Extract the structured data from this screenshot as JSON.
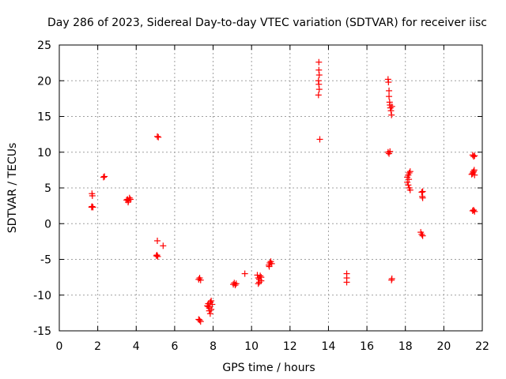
{
  "chart_data": {
    "type": "scatter",
    "title": "Day 286 of 2023, Sidereal Day-to-day VTEC variation (SDTVAR) for receiver iisc",
    "xlabel": "GPS time / hours",
    "ylabel": "SDTVAR / TECUs",
    "xlim": [
      0,
      22
    ],
    "ylim": [
      -15,
      25
    ],
    "xticks": [
      0,
      2,
      4,
      6,
      8,
      10,
      12,
      14,
      16,
      18,
      20,
      22
    ],
    "yticks": [
      -15,
      -10,
      -5,
      0,
      5,
      10,
      15,
      20,
      25
    ],
    "grid": true,
    "marker": "+",
    "color": "#ff0000",
    "series": [
      {
        "name": "SDTVAR",
        "points": [
          [
            1.7,
            4.2
          ],
          [
            1.72,
            3.9
          ],
          [
            1.7,
            2.4
          ],
          [
            1.75,
            2.3
          ],
          [
            1.68,
            2.3
          ],
          [
            2.35,
            6.6
          ],
          [
            2.3,
            6.5
          ],
          [
            3.55,
            3.4
          ],
          [
            3.6,
            3.2
          ],
          [
            3.65,
            3.6
          ],
          [
            3.5,
            3.3
          ],
          [
            3.7,
            3.4
          ],
          [
            3.58,
            3.0
          ],
          [
            5.1,
            12.2
          ],
          [
            5.15,
            12.1
          ],
          [
            5.1,
            -2.4
          ],
          [
            5.4,
            -3.1
          ],
          [
            5.08,
            -4.4
          ],
          [
            5.12,
            -4.6
          ],
          [
            5.05,
            -4.5
          ],
          [
            7.3,
            -7.6
          ],
          [
            7.35,
            -7.9
          ],
          [
            7.25,
            -7.8
          ],
          [
            7.3,
            -13.5
          ],
          [
            7.35,
            -13.7
          ],
          [
            7.25,
            -13.4
          ],
          [
            7.7,
            -11.5
          ],
          [
            7.75,
            -11.2
          ],
          [
            7.8,
            -11.8
          ],
          [
            7.85,
            -11.0
          ],
          [
            7.9,
            -10.8
          ],
          [
            7.8,
            -12.2
          ],
          [
            7.85,
            -12.6
          ],
          [
            7.9,
            -12.0
          ],
          [
            7.75,
            -11.6
          ],
          [
            7.95,
            -11.3
          ],
          [
            9.05,
            -8.5
          ],
          [
            9.1,
            -8.3
          ],
          [
            9.15,
            -8.6
          ],
          [
            9.2,
            -8.4
          ],
          [
            9.65,
            -7.0
          ],
          [
            10.3,
            -7.2
          ],
          [
            10.35,
            -7.6
          ],
          [
            10.4,
            -7.8
          ],
          [
            10.45,
            -7.3
          ],
          [
            10.5,
            -8.0
          ],
          [
            10.35,
            -8.4
          ],
          [
            10.4,
            -8.2
          ],
          [
            10.5,
            -7.5
          ],
          [
            10.9,
            -5.8
          ],
          [
            10.95,
            -5.5
          ],
          [
            11.0,
            -5.3
          ],
          [
            11.05,
            -5.6
          ],
          [
            10.92,
            -6.0
          ],
          [
            13.5,
            22.6
          ],
          [
            13.5,
            21.5
          ],
          [
            13.52,
            20.8
          ],
          [
            13.48,
            20.0
          ],
          [
            13.5,
            19.5
          ],
          [
            13.52,
            18.8
          ],
          [
            13.48,
            18.0
          ],
          [
            13.55,
            11.8
          ],
          [
            14.95,
            -7.0
          ],
          [
            14.95,
            -7.6
          ],
          [
            14.95,
            -8.2
          ],
          [
            17.1,
            20.2
          ],
          [
            17.12,
            19.8
          ],
          [
            17.15,
            18.6
          ],
          [
            17.15,
            17.8
          ],
          [
            17.18,
            17.0
          ],
          [
            17.2,
            16.6
          ],
          [
            17.22,
            16.2
          ],
          [
            17.25,
            15.8
          ],
          [
            17.28,
            15.2
          ],
          [
            17.3,
            16.4
          ],
          [
            17.1,
            10.0
          ],
          [
            17.15,
            9.8
          ],
          [
            17.2,
            10.1
          ],
          [
            17.3,
            -7.7
          ],
          [
            17.28,
            -7.9
          ],
          [
            18.1,
            6.5
          ],
          [
            18.15,
            6.8
          ],
          [
            18.2,
            7.1
          ],
          [
            18.25,
            7.3
          ],
          [
            18.1,
            5.8
          ],
          [
            18.15,
            5.4
          ],
          [
            18.2,
            5.0
          ],
          [
            18.25,
            4.7
          ],
          [
            18.18,
            6.2
          ],
          [
            18.85,
            4.4
          ],
          [
            18.9,
            4.5
          ],
          [
            18.88,
            3.8
          ],
          [
            18.9,
            3.6
          ],
          [
            18.8,
            -1.2
          ],
          [
            18.85,
            -1.5
          ],
          [
            18.9,
            -1.7
          ],
          [
            21.5,
            9.6
          ],
          [
            21.55,
            9.4
          ],
          [
            21.6,
            9.5
          ],
          [
            21.5,
            7.0
          ],
          [
            21.55,
            7.3
          ],
          [
            21.6,
            6.8
          ],
          [
            21.45,
            6.9
          ],
          [
            21.58,
            7.5
          ],
          [
            21.52,
            7.2
          ],
          [
            21.5,
            1.8
          ],
          [
            21.55,
            1.9
          ],
          [
            21.6,
            1.7
          ]
        ]
      }
    ]
  }
}
